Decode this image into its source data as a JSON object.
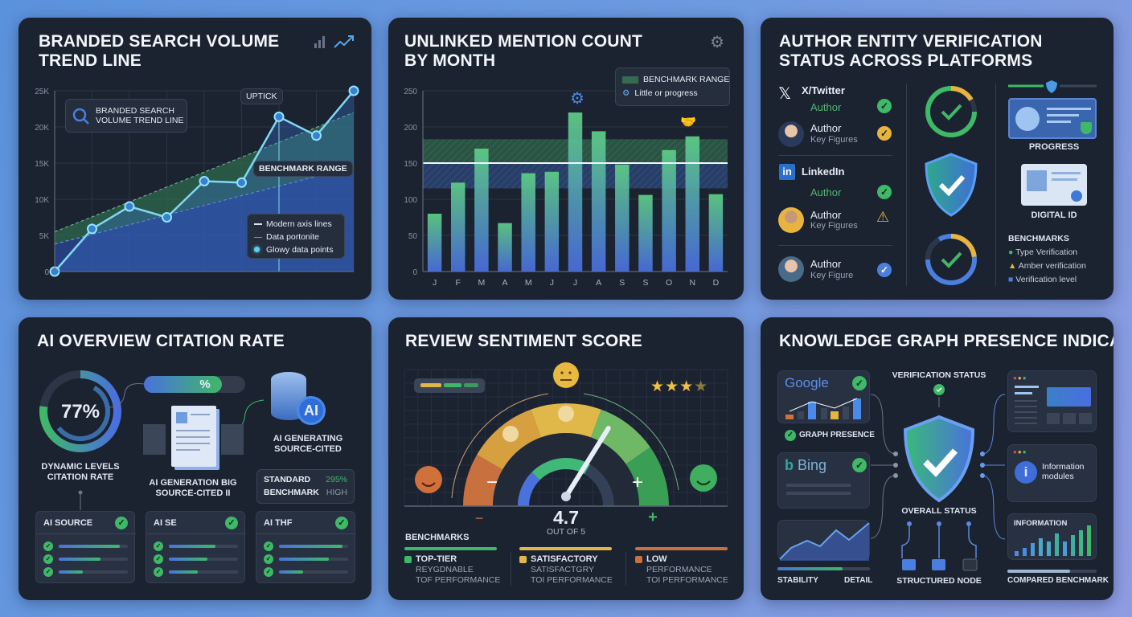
{
  "colors": {
    "panel": "#1b2230",
    "green": "#3fb868",
    "blue": "#4a7fe0",
    "amber": "#e8b440",
    "orange": "#d0703a",
    "teal": "#4fc3d8"
  },
  "p1": {
    "title_line1": "BRANDED SEARCH VOLUME",
    "title_line2": "TREND LINE",
    "icon_bars": "bar-chart-icon",
    "icon_trend": "trend-up-icon",
    "search_box_line1": "BRANDED SEARCH",
    "search_box_line2": "VOLUME TREND LINE",
    "uptick": "UPTICK",
    "benchmark": "BENCHMARK RANGE",
    "legend": [
      "Modern axis lines",
      "Data portonite",
      "Glowy data points"
    ]
  },
  "p2": {
    "title_line1": "UNLINKED MENTION COUNT",
    "title_line2": "BY MONTH",
    "legend_benchmark": "BENCHMARK RANGE",
    "legend_progress": "Little or progress"
  },
  "p3": {
    "title_line1": "AUTHOR ENTITY VERIFICATION",
    "title_line2": "STATUS ACROSS PLATFORMS",
    "twitter": "X/Twitter",
    "linkedin": "LinkedIn",
    "rows": [
      {
        "name": "Author",
        "status": "verified"
      },
      {
        "name": "Author",
        "sub": "Key Figures",
        "status": "pending"
      },
      {
        "name": "Author",
        "status": "verified"
      },
      {
        "name": "Author",
        "sub": "Key Figures",
        "status": "warning"
      },
      {
        "name": "Author",
        "sub": "Key Figure",
        "status": "verified-blue"
      }
    ],
    "progress": "PROGRESS",
    "digital_id": "DIGITAL ID",
    "benchmarks": "BENCHMARKS",
    "bench_items": [
      "Type Verification",
      "Amber verification",
      "Verification level"
    ]
  },
  "p4": {
    "title": "AI OVERVIEW CITATION RATE",
    "rate": "77%",
    "rate_value": 77,
    "rate_label_1": "DYNAMIC LEVELS",
    "rate_label_2": "CITATION RATE",
    "pill": "%",
    "pill_fill": 0.77,
    "doc_label_1": "AI GENERATION BIG",
    "doc_label_2": "SOURCE-CITED II",
    "ai_badge": "AI",
    "ai_label_1": "AI GENERATING",
    "ai_label_2": "SOURCE-CITED",
    "standard": "STANDARD",
    "benchmark": "BENCHMARK",
    "standard_value": "295%",
    "benchmark_value": "HIGH",
    "cards": [
      {
        "title": "AI SOURCE",
        "bars": [
          0.88,
          0.6,
          0.35
        ]
      },
      {
        "title": "AI SE",
        "bars": [
          0.67,
          0.56,
          0.42
        ]
      },
      {
        "title": "AI THF",
        "bars": [
          0.92,
          0.72,
          0.35
        ]
      }
    ]
  },
  "p5": {
    "title": "REVIEW SENTIMENT SCORE",
    "score": "4.7",
    "score_value": 4.7,
    "out_of": "OUT OF 5",
    "stars": 4,
    "minus": "−",
    "plus": "+",
    "benchmarks": "BENCHMARKS",
    "cols": [
      {
        "label": "TOP-TIER",
        "l1": "REYGDNABLE",
        "l2": "TOF PERFORMANCE",
        "color": "#3fb868"
      },
      {
        "label": "SATISFACTORY",
        "l1": "SATISFACTGRY",
        "l2": "TOI PERFORMANCE",
        "color": "#e0b84a"
      },
      {
        "label": "LOW",
        "l1": "PERFORMANCE",
        "l2": "TOI PERFORMANCE",
        "color": "#c8703e"
      }
    ]
  },
  "p6": {
    "title": "KNOWLEDGE GRAPH PRESENCE INDICATOR",
    "google": "Google",
    "bing": "Bing",
    "graph_presence": "GRAPH PRESENCE",
    "verification_status": "VERIFICATION STATUS",
    "overall_status": "OVERALL STATUS",
    "structured_node": "STRUCTURED NODE",
    "stability": "STABILITY",
    "detail": "DETAIL",
    "stability_level": 0.7,
    "info_modules_1": "Information",
    "info_modules_2": "modules",
    "information": "INFORMATION",
    "compared": "COMPARED BENCHMARK",
    "compared_level": 0.7
  },
  "chart_data": [
    {
      "type": "line",
      "title": "BRANDED SEARCH VOLUME TREND LINE",
      "y_ticks": [
        "0",
        "5K",
        "10K",
        "15K",
        "20K",
        "25K"
      ],
      "ylim": [
        0,
        25000
      ],
      "values": [
        0,
        5900,
        9000,
        7500,
        12500,
        12300,
        21400,
        18800,
        25000
      ],
      "benchmark_upper": [
        5500,
        22000
      ],
      "benchmark_lower": [
        3800,
        14500
      ],
      "annotations": [
        "UPTICK",
        "BENCHMARK RANGE"
      ],
      "grid": true,
      "legend": "bottom-right"
    },
    {
      "type": "bar",
      "title": "UNLINKED MENTION COUNT BY MONTH",
      "categories": [
        "J",
        "F",
        "M",
        "A",
        "M",
        "J",
        "J",
        "A",
        "S",
        "S",
        "O",
        "N",
        "D"
      ],
      "values": [
        80,
        123,
        170,
        67,
        136,
        138,
        220,
        194,
        148,
        106,
        168,
        187,
        107
      ],
      "y_ticks": [
        "0",
        "50",
        "100",
        "150",
        "200",
        "250"
      ],
      "ylim": [
        0,
        250
      ],
      "benchmark_range": [
        115,
        183
      ],
      "benchmark_line": 150,
      "grid": true,
      "legend": "top-right"
    }
  ]
}
